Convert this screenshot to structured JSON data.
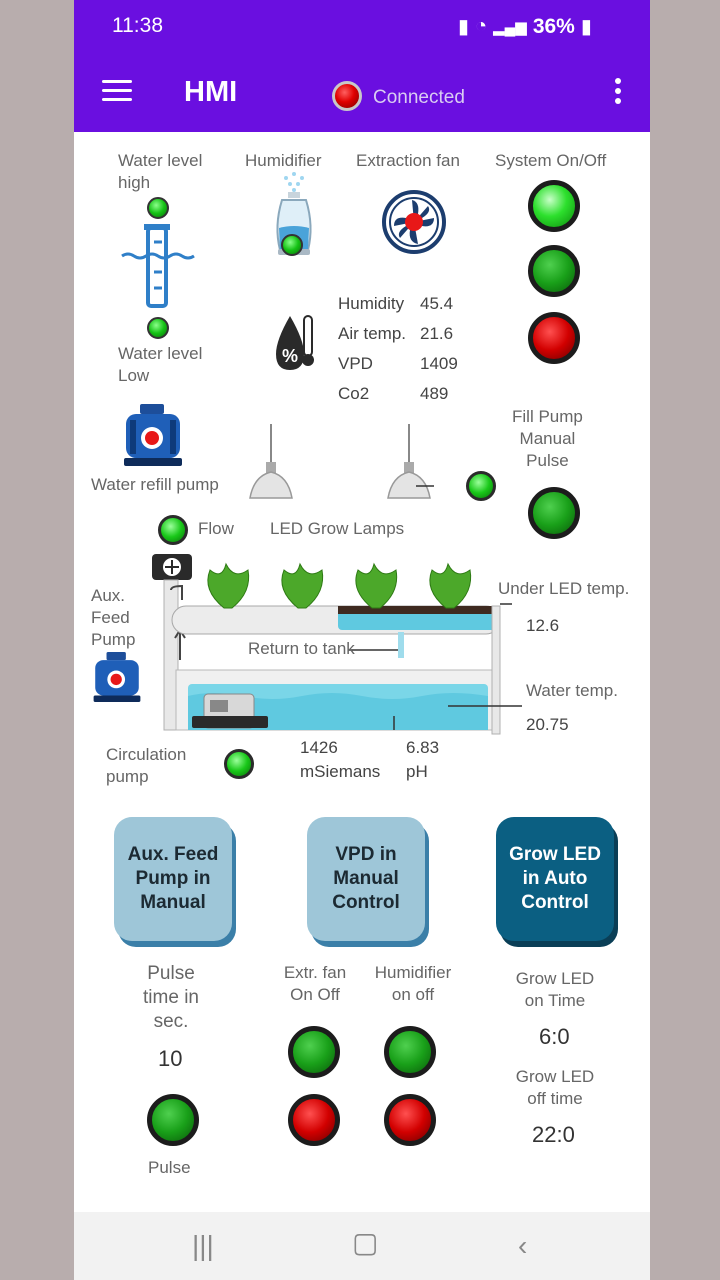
{
  "status": {
    "time": "11:38",
    "battery": "36%"
  },
  "appbar": {
    "title": "HMI",
    "connection": "Connected"
  },
  "labels": {
    "water_high": "Water level\nhigh",
    "humidifier": "Humidifier",
    "extraction_fan": "Extraction fan",
    "system": "System On/Off",
    "water_low": "Water level\nLow",
    "fill_pump": "Fill Pump\nManual\nPulse",
    "water_refill_pump": "Water refill pump",
    "flow": "Flow",
    "led_grow_lamps": "LED Grow Lamps",
    "aux_feed_pump": "Aux.\nFeed\nPump",
    "under_led_temp": "Under LED temp.",
    "return_to_tank": "Return to tank",
    "water_temp": "Water temp.",
    "circulation_pump": "Circulation\npump",
    "msiemens": "mSiemans",
    "ph": "pH"
  },
  "sensors": [
    {
      "name": "Humidity",
      "value": "45.4"
    },
    {
      "name": "Air temp.",
      "value": "21.6"
    },
    {
      "name": "VPD",
      "value": "1409"
    },
    {
      "name": "Co2",
      "value": "489"
    }
  ],
  "readings": {
    "under_led_temp": "12.6",
    "water_temp": "20.75",
    "ec": "1426",
    "ph": "6.83"
  },
  "mode_buttons": {
    "aux": "Aux. Feed Pump in Manual",
    "vpd": "VPD in Manual Control",
    "grow": "Grow LED in Auto Control"
  },
  "controls": {
    "pulse_time_label": "Pulse\ntime in\nsec.",
    "pulse_time": "10",
    "pulse_label": "Pulse",
    "extr_fan_label": "Extr. fan\nOn Off",
    "humidifier_label": "Humidifier\non off",
    "grow_on_label": "Grow LED\non Time",
    "grow_on": "6:0",
    "grow_off_label": "Grow LED\noff time",
    "grow_off": "22:0"
  },
  "colors": {
    "primary": "#6a0fe0",
    "led_green": "#19c819",
    "led_red": "#d20000",
    "mode_light": "#9ec6d8",
    "mode_dark": "#0b5f82"
  }
}
